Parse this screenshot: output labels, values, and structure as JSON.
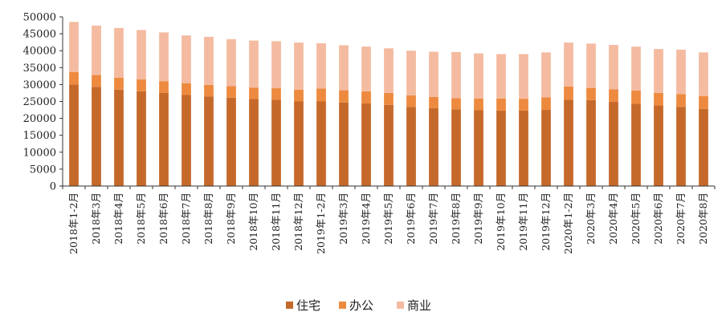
{
  "chart_data": {
    "type": "bar",
    "stacked": true,
    "categories": [
      "2018年1-2月",
      "2018年3月",
      "2018年4月",
      "2018年5月",
      "2018年6月",
      "2018年7月",
      "2018年8月",
      "2018年9月",
      "2018年10月",
      "2018年11月",
      "2018年12月",
      "2019年1-2月",
      "2019年3月",
      "2019年4月",
      "2019年5月",
      "2019年6月",
      "2019年7月",
      "2019年8月",
      "2019年9月",
      "2019年10月",
      "2019年11月",
      "2019年12月",
      "2020年1-2月",
      "2020年3月",
      "2020年4月",
      "2020年5月",
      "2020年6月",
      "2020年7月",
      "2020年8月"
    ],
    "series": [
      {
        "name": "住宅",
        "color": "#C5692A",
        "values": [
          30000,
          29300,
          28500,
          28000,
          27500,
          26900,
          26500,
          26100,
          25700,
          25500,
          25000,
          25000,
          24700,
          24400,
          24000,
          23400,
          23000,
          22700,
          22400,
          22300,
          22300,
          22500,
          25500,
          25400,
          24900,
          24300,
          23800,
          23400,
          22800
        ]
      },
      {
        "name": "办公",
        "color": "#ED8A3F",
        "values": [
          3700,
          3500,
          3500,
          3500,
          3500,
          3500,
          3400,
          3400,
          3400,
          3400,
          3500,
          3800,
          3600,
          3600,
          3500,
          3400,
          3300,
          3300,
          3500,
          3600,
          3500,
          3700,
          3900,
          3600,
          3700,
          3900,
          3700,
          3800,
          3800
        ]
      },
      {
        "name": "商业",
        "color": "#F4BBA1",
        "values": [
          14800,
          14600,
          14700,
          14600,
          14400,
          14100,
          14200,
          13900,
          13900,
          13900,
          13900,
          13400,
          13300,
          13200,
          13200,
          13200,
          13400,
          13600,
          13300,
          13100,
          13200,
          13300,
          13000,
          13100,
          13100,
          13000,
          13000,
          13100,
          12900
        ]
      }
    ],
    "ylim": [
      0,
      50000
    ],
    "yticks": [
      "0",
      "5000",
      "10000",
      "15000",
      "20000",
      "25000",
      "30000",
      "35000",
      "40000",
      "45000",
      "50000"
    ],
    "grid": false,
    "legend_position": "bottom"
  }
}
